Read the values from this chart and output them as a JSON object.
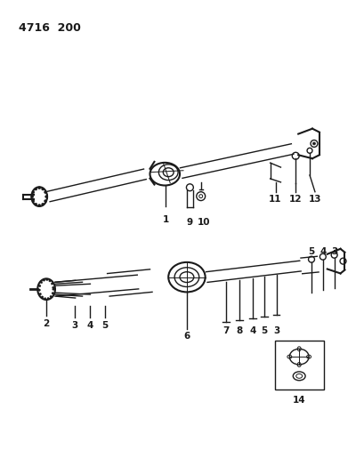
{
  "title": "4716  200",
  "bg": "#ffffff",
  "lc": "#1a1a1a",
  "fig_w": 4.09,
  "fig_h": 5.33,
  "dpi": 100
}
